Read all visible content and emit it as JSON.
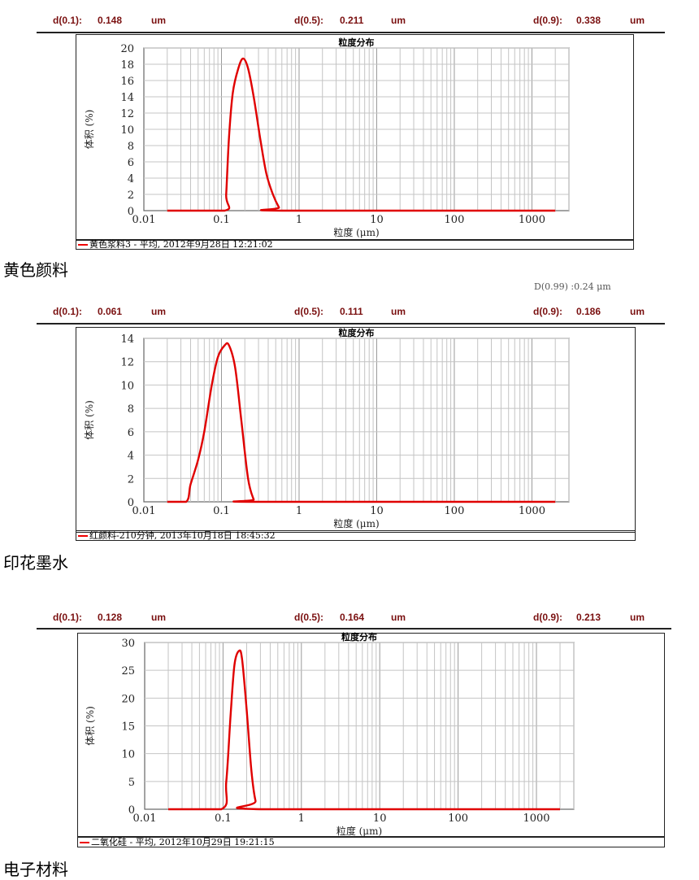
{
  "chart_data": [
    {
      "type": "line",
      "title": "粒度分布",
      "xlabel": "粒度 (μm)",
      "ylabel": "体积 (%)",
      "xscale": "log",
      "xlim": [
        0.01,
        3000
      ],
      "xticks": [
        "0.01",
        "0.1",
        "1",
        "10",
        "100",
        "1000"
      ],
      "ylim": [
        0,
        20
      ],
      "yticks": [
        0,
        2,
        4,
        6,
        8,
        10,
        12,
        14,
        16,
        18,
        20
      ],
      "grid": true,
      "line_color": "#e00000",
      "series": [
        {
          "name": "黄色浆料3 - 平均, 2012年9月28日 12:21:02",
          "x": [
            0.02,
            0.11,
            0.115,
            0.125,
            0.14,
            0.165,
            0.19,
            0.22,
            0.26,
            0.32,
            0.38,
            0.46,
            0.55,
            0.6,
            2000
          ],
          "y": [
            0,
            0,
            2,
            9,
            14.5,
            17.5,
            18.7,
            17.5,
            14,
            8.5,
            4.5,
            2,
            0.4,
            0,
            0
          ]
        }
      ],
      "stats": {
        "d01": "0.148",
        "d05": "0.211",
        "d09": "0.338",
        "unit": "um"
      },
      "sample_label": "黄色颜料"
    },
    {
      "type": "line",
      "title": "粒度分布",
      "xlabel": "粒度 (μm)",
      "ylabel": "体积 (%)",
      "xscale": "log",
      "xlim": [
        0.01,
        3000
      ],
      "xticks": [
        "0.01",
        "0.1",
        "1",
        "10",
        "100",
        "1000"
      ],
      "ylim": [
        0,
        14
      ],
      "yticks": [
        0,
        2,
        4,
        6,
        8,
        10,
        12,
        14
      ],
      "grid": true,
      "line_color": "#e00000",
      "series": [
        {
          "name": "红颜料-210分钟, 2013年10月18日 18:45:32",
          "x": [
            0.02,
            0.035,
            0.04,
            0.05,
            0.06,
            0.075,
            0.09,
            0.11,
            0.125,
            0.15,
            0.18,
            0.22,
            0.26,
            0.28,
            2000
          ],
          "y": [
            0,
            0,
            1.5,
            3.6,
            6,
            10,
            12.4,
            13.4,
            13.4,
            11.5,
            7,
            2,
            0.2,
            0,
            0
          ]
        }
      ],
      "stats": {
        "d01": "0.061",
        "d05": "0.111",
        "d09": "0.186",
        "unit": "um"
      },
      "note": "D(0.99) :0.24 μm",
      "sample_label": "印花墨水"
    },
    {
      "type": "line",
      "title": "粒度分布",
      "xlabel": "粒度 (μm)",
      "ylabel": "体积 (%)",
      "xscale": "log",
      "xlim": [
        0.01,
        3000
      ],
      "xticks": [
        "0.01",
        "0.1",
        "1",
        "10",
        "100",
        "1000"
      ],
      "ylim": [
        0,
        30
      ],
      "yticks": [
        0,
        5,
        10,
        15,
        20,
        25,
        30
      ],
      "grid": true,
      "line_color": "#e00000",
      "series": [
        {
          "name": "二氧化硅 - 平均, 2012年10月29日 19:21:15",
          "x": [
            0.02,
            0.095,
            0.11,
            0.125,
            0.14,
            0.16,
            0.175,
            0.2,
            0.23,
            0.26,
            0.3,
            2000
          ],
          "y": [
            0,
            0,
            5,
            17,
            26,
            28.5,
            27,
            18,
            7,
            1.5,
            0,
            0
          ]
        }
      ],
      "stats": {
        "d01": "0.128",
        "d05": "0.164",
        "d09": "0.213",
        "unit": "um"
      },
      "sample_label": "电子材料"
    }
  ],
  "stat_labels": {
    "d01": "d(0.1):",
    "d05": "d(0.5):",
    "d09": "d(0.9):"
  }
}
